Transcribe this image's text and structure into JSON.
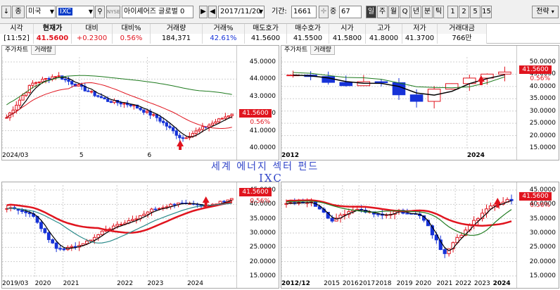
{
  "toolbar": {
    "arrow_down": "↓",
    "item_type": "종",
    "market": "미국",
    "symbol": "IXC",
    "search_icon": "search-icon",
    "exchange": "NYSE",
    "fund_name": "아이셰어즈 글로벌 0",
    "date": "2017/11/20",
    "period_label": "기간:",
    "period_value": "1661",
    "zoom_label": "중",
    "zoom_value": "67",
    "intervals": [
      "일",
      "주",
      "월",
      "Q",
      "년",
      "분",
      "틱"
    ],
    "active_interval": "일",
    "minutes": [
      "1",
      "2",
      "5",
      "15"
    ],
    "strategy": "전략"
  },
  "quote": {
    "headers": [
      "시각",
      "현재가",
      "대비",
      "대비%",
      "거래량",
      "거래%",
      "매도호가",
      "매수호가",
      "시가",
      "고가",
      "저가",
      "거래대금"
    ],
    "values": [
      "[11:52]",
      "41.5600",
      "+0.2300",
      "0.56%",
      "184,371",
      "42.61%",
      "41.5600",
      "41.5500",
      "41.5800",
      "41.8000",
      "41.3700",
      "766만"
    ]
  },
  "annotation": {
    "line1": "세계 에너지 섹터 펀드",
    "line2": "IXC"
  },
  "colors": {
    "up": "#e0141e",
    "down": "#1632d8",
    "ma_red": "#e0141e",
    "ma_green": "#1e7a1e",
    "ma_blue": "#1632d8",
    "ma_black": "#000000",
    "ma_teal": "#2a8a8a"
  },
  "panels": {
    "top_left": {
      "tabs": [
        "주가차트",
        "거래량"
      ],
      "yticks": [
        "45.0000",
        "44.0000",
        "43.0000",
        "42.0000",
        "41.0000",
        "40.0000"
      ],
      "price": "41.5600",
      "pct": "0.56%",
      "xlabels": [
        "2024/03",
        "5",
        "6"
      ],
      "interval": "daily"
    },
    "top_right": {
      "tabs": [
        "주가차트",
        "거래량"
      ],
      "yticks": [
        "50.0000",
        "45.0000",
        "40.0000",
        "35.0000",
        "30.0000",
        "25.0000",
        "20.0000",
        "15.0000"
      ],
      "price": "41.5600",
      "pct": "0.56%",
      "xlabels": [
        "2012",
        "2024"
      ],
      "interval": "yearly"
    },
    "bottom_left": {
      "yticks": [
        "45.0000",
        "40.0000",
        "35.0000",
        "30.0000",
        "25.0000",
        "20.0000",
        "15.0000"
      ],
      "price": "41.5600",
      "pct": "0.56%",
      "xlabels": [
        "2019/03",
        "2020",
        "2021",
        "2022",
        "2023",
        "2024"
      ],
      "interval": "weekly"
    },
    "bottom_right": {
      "yticks": [
        "45.0000",
        "40.0000",
        "35.0000",
        "30.0000",
        "25.0000",
        "20.0000",
        "15.0000"
      ],
      "price": "41.5600",
      "pct": "0.56%",
      "xlabels": [
        "2012/12",
        "2015",
        "2016",
        "2017",
        "2018",
        "2019",
        "2020",
        "2021",
        "2022",
        "2023",
        "2024"
      ],
      "interval": "monthly"
    }
  }
}
